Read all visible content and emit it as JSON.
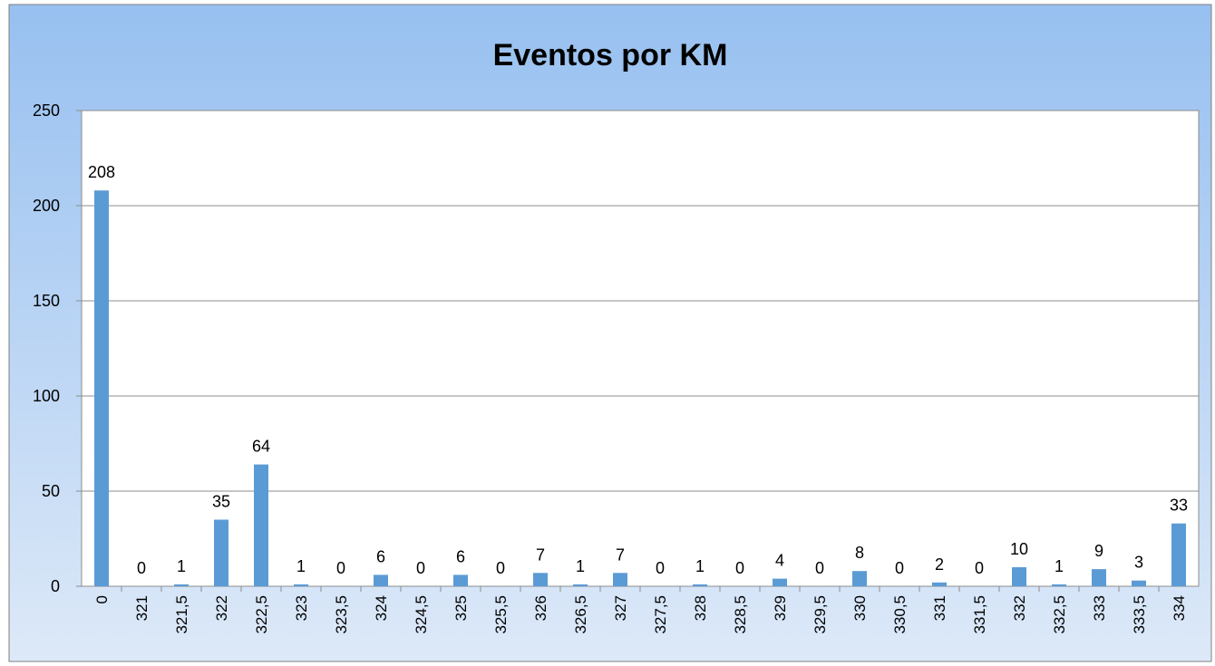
{
  "chart_data": {
    "type": "bar",
    "title": "Eventos por KM",
    "categories": [
      "0",
      "321",
      "321,5",
      "322",
      "322,5",
      "323",
      "323,5",
      "324",
      "324,5",
      "325",
      "325,5",
      "326",
      "326,5",
      "327",
      "327,5",
      "328",
      "328,5",
      "329",
      "329,5",
      "330",
      "330,5",
      "331",
      "331,5",
      "332",
      "332,5",
      "333",
      "333,5",
      "334"
    ],
    "values": [
      208,
      0,
      1,
      35,
      64,
      1,
      0,
      6,
      0,
      6,
      0,
      7,
      1,
      7,
      0,
      1,
      0,
      4,
      0,
      8,
      0,
      2,
      0,
      10,
      1,
      9,
      3,
      33
    ],
    "color": "#5b9bd5",
    "ylim": [
      0,
      250
    ],
    "yticks": [
      0,
      50,
      100,
      150,
      200,
      250
    ],
    "grid": true
  }
}
